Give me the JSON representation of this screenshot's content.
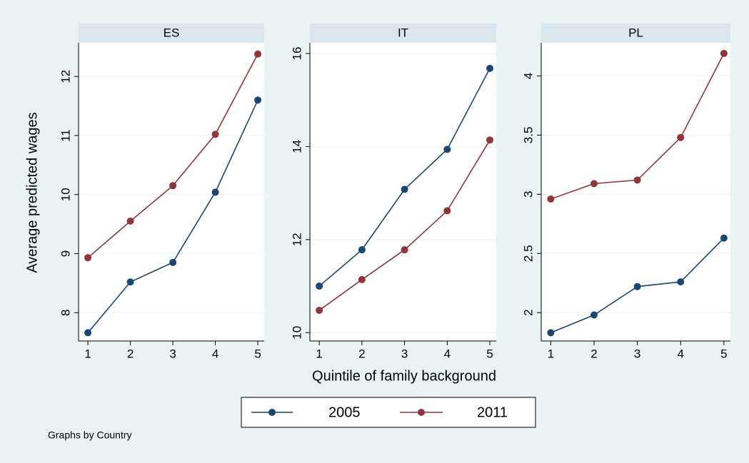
{
  "figure": {
    "ylabel": "Average predicted wages",
    "xlabel": "Quintile of family background",
    "note": "Graphs by Country",
    "legend": [
      {
        "name": "2005",
        "color": "#1a476f"
      },
      {
        "name": "2011",
        "color": "#90353b"
      }
    ]
  },
  "chart_data": [
    {
      "type": "line",
      "title": "ES",
      "x": [
        1,
        2,
        3,
        4,
        5
      ],
      "xlim": [
        0.78,
        5.15
      ],
      "xticks": [
        1,
        2,
        3,
        4,
        5
      ],
      "ylim": [
        7.52,
        12.57
      ],
      "yticks": [
        8,
        9,
        10,
        11,
        12
      ],
      "grid": true,
      "series": [
        {
          "color": "#1a476f",
          "values": [
            7.66,
            8.52,
            8.85,
            10.04,
            11.6
          ]
        },
        {
          "color": "#90353b",
          "values": [
            8.93,
            9.55,
            10.15,
            11.02,
            12.38
          ]
        }
      ]
    },
    {
      "type": "line",
      "title": "IT",
      "x": [
        1,
        2,
        3,
        4,
        5
      ],
      "xlim": [
        0.78,
        5.15
      ],
      "xticks": [
        1,
        2,
        3,
        4,
        5
      ],
      "ylim": [
        9.82,
        16.23
      ],
      "yticks": [
        10,
        12,
        14,
        16
      ],
      "grid": true,
      "series": [
        {
          "color": "#1a476f",
          "values": [
            11.0,
            11.78,
            13.08,
            13.94,
            15.68
          ]
        },
        {
          "color": "#90353b",
          "values": [
            10.48,
            11.14,
            11.78,
            12.62,
            14.14
          ]
        }
      ]
    },
    {
      "type": "line",
      "title": "PL",
      "x": [
        1,
        2,
        3,
        4,
        5
      ],
      "xlim": [
        0.78,
        5.15
      ],
      "xticks": [
        1,
        2,
        3,
        4,
        5
      ],
      "ylim": [
        1.76,
        4.28
      ],
      "yticks": [
        2,
        2.5,
        3,
        3.5,
        4
      ],
      "grid": true,
      "series": [
        {
          "color": "#1a476f",
          "values": [
            1.83,
            1.98,
            2.22,
            2.26,
            2.63
          ]
        },
        {
          "color": "#90353b",
          "values": [
            2.96,
            3.09,
            3.12,
            3.48,
            4.19
          ]
        }
      ]
    }
  ]
}
